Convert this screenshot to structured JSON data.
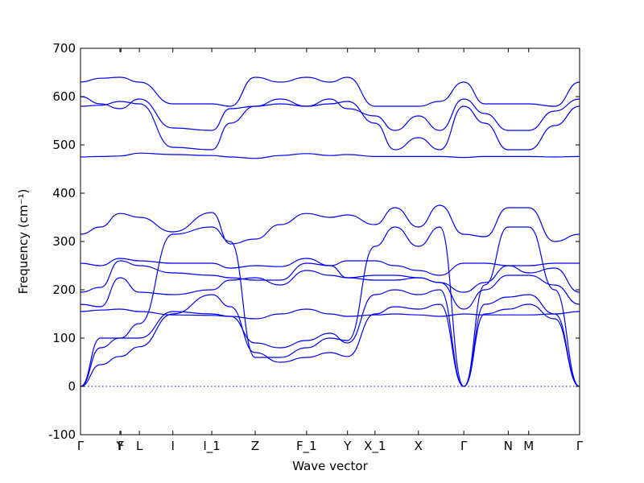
{
  "chart_data": {
    "type": "line",
    "title": "",
    "xlabel": "Wave vector",
    "ylabel": "Frequency (cm⁻¹)",
    "ylim": [
      -100,
      700
    ],
    "xlim": [
      0,
      1
    ],
    "grid": false,
    "yticks": [
      -100,
      0,
      100,
      200,
      300,
      400,
      500,
      600,
      700
    ],
    "xticks": [
      {
        "pos": 0.0,
        "label": "Γ"
      },
      {
        "pos": 0.079,
        "label": "Y"
      },
      {
        "pos": 0.081,
        "label": "F"
      },
      {
        "pos": 0.118,
        "label": "L"
      },
      {
        "pos": 0.185,
        "label": "I"
      },
      {
        "pos": 0.263,
        "label": "I_1"
      },
      {
        "pos": 0.35,
        "label": "Z"
      },
      {
        "pos": 0.453,
        "label": "F_1"
      },
      {
        "pos": 0.535,
        "label": "Y"
      },
      {
        "pos": 0.59,
        "label": "X_1"
      },
      {
        "pos": 0.677,
        "label": "X"
      },
      {
        "pos": 0.768,
        "label": "Γ"
      },
      {
        "pos": 0.857,
        "label": "N"
      },
      {
        "pos": 0.898,
        "label": "M"
      },
      {
        "pos": 1.0,
        "label": "Γ"
      }
    ],
    "zero_line": 0,
    "series": [
      {
        "x": [
          0,
          0.04,
          0.079,
          0.118,
          0.185,
          0.263,
          0.3,
          0.35,
          0.4,
          0.453,
          0.5,
          0.535,
          0.59,
          0.63,
          0.677,
          0.72,
          0.768,
          0.81,
          0.857,
          0.898,
          0.95,
          1.0
        ],
        "values": [
          0,
          45,
          62,
          82,
          150,
          190,
          165,
          70,
          50,
          60,
          70,
          62,
          150,
          165,
          160,
          170,
          0,
          150,
          160,
          170,
          140,
          0
        ]
      },
      {
        "x": [
          0,
          0.04,
          0.079,
          0.118,
          0.185,
          0.263,
          0.3,
          0.35,
          0.4,
          0.453,
          0.5,
          0.535,
          0.59,
          0.63,
          0.677,
          0.72,
          0.768,
          0.81,
          0.857,
          0.898,
          0.95,
          1.0
        ],
        "values": [
          0,
          80,
          100,
          100,
          155,
          150,
          145,
          90,
          80,
          95,
          110,
          90,
          190,
          200,
          190,
          200,
          0,
          170,
          185,
          190,
          150,
          0
        ]
      },
      {
        "x": [
          0,
          0.04,
          0.079,
          0.118,
          0.185,
          0.263,
          0.3,
          0.35,
          0.4,
          0.453,
          0.5,
          0.535,
          0.59,
          0.63,
          0.677,
          0.72,
          0.768,
          0.81,
          0.857,
          0.898,
          0.95,
          1.0
        ],
        "values": [
          0,
          100,
          100,
          130,
          315,
          330,
          300,
          60,
          60,
          80,
          100,
          95,
          290,
          330,
          290,
          330,
          0,
          210,
          330,
          330,
          200,
          0
        ]
      },
      {
        "x": [
          0,
          0.04,
          0.079,
          0.118,
          0.185,
          0.263,
          0.3,
          0.35,
          0.4,
          0.453,
          0.5,
          0.535,
          0.59,
          0.63,
          0.677,
          0.72,
          0.768,
          0.81,
          0.857,
          0.898,
          0.95,
          1.0
        ],
        "values": [
          155,
          158,
          160,
          155,
          148,
          147,
          145,
          140,
          150,
          160,
          150,
          145,
          148,
          150,
          148,
          145,
          150,
          148,
          148,
          148,
          150,
          155
        ]
      },
      {
        "x": [
          0,
          0.04,
          0.079,
          0.118,
          0.185,
          0.263,
          0.3,
          0.35,
          0.4,
          0.453,
          0.5,
          0.535,
          0.59,
          0.63,
          0.677,
          0.72,
          0.768,
          0.81,
          0.857,
          0.898,
          0.95,
          1.0
        ],
        "values": [
          170,
          165,
          225,
          195,
          190,
          200,
          220,
          225,
          210,
          240,
          230,
          225,
          220,
          220,
          225,
          215,
          160,
          200,
          230,
          230,
          210,
          170
        ]
      },
      {
        "x": [
          0,
          0.04,
          0.079,
          0.118,
          0.185,
          0.263,
          0.3,
          0.35,
          0.4,
          0.453,
          0.5,
          0.535,
          0.59,
          0.63,
          0.677,
          0.72,
          0.768,
          0.81,
          0.857,
          0.898,
          0.95,
          1.0
        ],
        "values": [
          195,
          205,
          260,
          250,
          235,
          230,
          225,
          220,
          220,
          255,
          250,
          225,
          230,
          230,
          225,
          215,
          195,
          215,
          250,
          235,
          245,
          195
        ]
      },
      {
        "x": [
          0,
          0.04,
          0.079,
          0.118,
          0.185,
          0.263,
          0.3,
          0.35,
          0.4,
          0.453,
          0.5,
          0.535,
          0.59,
          0.63,
          0.677,
          0.72,
          0.768,
          0.81,
          0.857,
          0.898,
          0.95,
          1.0
        ],
        "values": [
          255,
          250,
          265,
          260,
          255,
          255,
          245,
          250,
          248,
          265,
          250,
          260,
          260,
          250,
          240,
          230,
          255,
          255,
          250,
          250,
          255,
          255
        ]
      },
      {
        "x": [
          0,
          0.04,
          0.079,
          0.118,
          0.185,
          0.263,
          0.3,
          0.35,
          0.4,
          0.453,
          0.5,
          0.535,
          0.59,
          0.63,
          0.677,
          0.72,
          0.768,
          0.81,
          0.857,
          0.898,
          0.95,
          1.0
        ],
        "values": [
          315,
          330,
          358,
          350,
          320,
          360,
          295,
          305,
          335,
          358,
          350,
          355,
          335,
          370,
          330,
          375,
          315,
          310,
          370,
          370,
          300,
          315
        ]
      },
      {
        "x": [
          0,
          0.04,
          0.079,
          0.118,
          0.185,
          0.263,
          0.3,
          0.35,
          0.4,
          0.453,
          0.5,
          0.535,
          0.59,
          0.63,
          0.677,
          0.72,
          0.768,
          0.81,
          0.857,
          0.898,
          0.95,
          1.0
        ],
        "values": [
          475,
          476,
          477,
          483,
          480,
          478,
          475,
          472,
          478,
          482,
          478,
          480,
          476,
          476,
          476,
          476,
          474,
          476,
          476,
          476,
          475,
          476
        ]
      },
      {
        "x": [
          0,
          0.04,
          0.079,
          0.118,
          0.185,
          0.263,
          0.3,
          0.35,
          0.4,
          0.453,
          0.5,
          0.535,
          0.59,
          0.63,
          0.677,
          0.72,
          0.768,
          0.81,
          0.857,
          0.898,
          0.95,
          1.0
        ],
        "values": [
          580,
          582,
          590,
          585,
          495,
          490,
          545,
          580,
          585,
          580,
          585,
          590,
          545,
          490,
          515,
          490,
          580,
          545,
          490,
          490,
          540,
          580
        ]
      },
      {
        "x": [
          0,
          0.04,
          0.079,
          0.118,
          0.185,
          0.263,
          0.3,
          0.35,
          0.4,
          0.453,
          0.5,
          0.535,
          0.59,
          0.63,
          0.677,
          0.72,
          0.768,
          0.81,
          0.857,
          0.898,
          0.95,
          1.0
        ],
        "values": [
          600,
          585,
          575,
          595,
          535,
          530,
          575,
          580,
          595,
          580,
          595,
          575,
          560,
          530,
          560,
          530,
          595,
          565,
          530,
          530,
          570,
          595
        ]
      },
      {
        "x": [
          0,
          0.04,
          0.079,
          0.118,
          0.185,
          0.263,
          0.3,
          0.35,
          0.4,
          0.453,
          0.5,
          0.535,
          0.59,
          0.63,
          0.677,
          0.72,
          0.768,
          0.81,
          0.857,
          0.898,
          0.95,
          1.0
        ],
        "values": [
          630,
          638,
          640,
          630,
          585,
          585,
          580,
          640,
          630,
          640,
          630,
          640,
          580,
          580,
          580,
          590,
          630,
          585,
          585,
          585,
          580,
          630
        ]
      }
    ]
  }
}
